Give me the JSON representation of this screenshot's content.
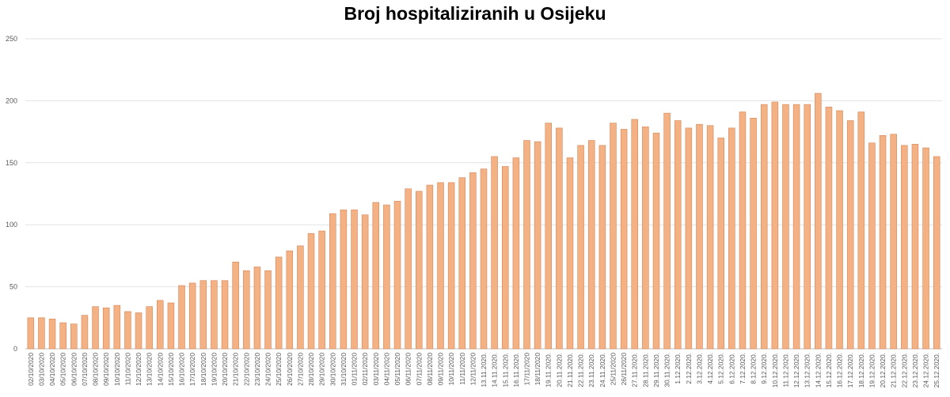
{
  "chart_data": {
    "type": "bar",
    "title": "Broj hospitaliziranih u Osijeku",
    "xlabel": "",
    "ylabel": "",
    "ylim": [
      0,
      250
    ],
    "yticks": [
      "0",
      "50",
      "100",
      "150",
      "200",
      "250"
    ],
    "grid": true,
    "legend": "none",
    "bar_color": "#f4b183",
    "bar_edge_color": "#d0875a",
    "categories": [
      "02/10/2020",
      "03/10/2020",
      "04/10/2020",
      "05/10/2020",
      "06/10/2020",
      "07/10/2020",
      "08/10/2020",
      "09/10/2020",
      "10/10/2020",
      "11/10/2020",
      "12/10/2020",
      "13/10/2020",
      "14/10/2020",
      "15/10/2020",
      "16/10/2020",
      "17/10/2020",
      "18/10/2020",
      "19/10/2020",
      "20/10/2020",
      "21/10/2020",
      "22/10/2020",
      "23/10/2020",
      "24/10/2020",
      "25/10/2020",
      "26/10/2020",
      "27/10/2020",
      "28/10/2020",
      "29/10/2020",
      "30/10/2020",
      "31/10/2020",
      "01/11/2020",
      "02/11/2020",
      "03/11/2020",
      "04/11/2020",
      "05/11/2020",
      "06/11/2020",
      "07/11/2020",
      "08/11/2020",
      "09/11/2020",
      "10/11/2020",
      "11/11/2020",
      "12/11/2020",
      "13.11.2020.",
      "14.11.2020.",
      "15.11.2020.",
      "16.11.2020.",
      "17/11/2020",
      "18/11/2020",
      "19.11.2020.",
      "20.11.2020.",
      "21.11.2020.",
      "22.11.2020.",
      "23.11.2020.",
      "24.11.2020.",
      "25/11/2020",
      "26/11/2020",
      "27.11.2020.",
      "28.11.2020.",
      "29.11.2020.",
      "30.11.2020.",
      "1.12.2020.",
      "2.12.2020.",
      "3.12.2020.",
      "4.12.2020.",
      "5.12.2020.",
      "6.12.2020.",
      "7.12.2020.",
      "8.12.2020.",
      "9.12.2020.",
      "10.12.2020.",
      "11.12.2020.",
      "12.12.2020.",
      "13.12.2020.",
      "14.12.2020.",
      "15.12.2020.",
      "16.12.2020.",
      "17.12.2020.",
      "18.12.2020.",
      "19.12.2020.",
      "20.12.2020.",
      "21.12.2020.",
      "22.12.2020.",
      "23.12.2020.",
      "24.12.2020.",
      "25.12.2020."
    ],
    "values": [
      25,
      25,
      24,
      21,
      20,
      27,
      34,
      33,
      35,
      30,
      29,
      34,
      39,
      37,
      51,
      53,
      55,
      55,
      55,
      70,
      63,
      66,
      63,
      74,
      79,
      83,
      93,
      95,
      109,
      112,
      112,
      108,
      118,
      116,
      119,
      129,
      127,
      132,
      134,
      134,
      138,
      142,
      145,
      155,
      147,
      154,
      168,
      167,
      182,
      178,
      154,
      164,
      168,
      164,
      182,
      177,
      185,
      179,
      174,
      190,
      184,
      178,
      181,
      180,
      170,
      178,
      191,
      186,
      197,
      199,
      197,
      197,
      197,
      206,
      195,
      192,
      184,
      191,
      166,
      172,
      173,
      164,
      165,
      162,
      155
    ]
  }
}
